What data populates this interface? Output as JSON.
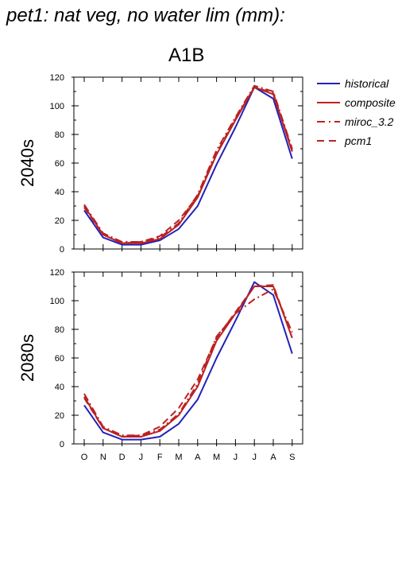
{
  "title": "pet1: nat veg, no water lim (mm):",
  "subtitle": "A1B",
  "chart_data": [
    {
      "type": "line",
      "panel_label": "2040s",
      "categories": [
        "O",
        "N",
        "D",
        "J",
        "F",
        "M",
        "A",
        "M",
        "J",
        "J",
        "A",
        "S"
      ],
      "ylim": [
        0,
        120
      ],
      "yticks": [
        0,
        20,
        40,
        60,
        80,
        100,
        120
      ],
      "series": [
        {
          "name": "historical",
          "color": "#2222bb",
          "dash": "solid",
          "values": [
            27,
            8,
            3,
            3,
            6,
            14,
            30,
            59,
            85,
            113,
            105,
            63
          ]
        },
        {
          "name": "composite",
          "color": "#bb2222",
          "dash": "solid",
          "values": [
            30,
            10,
            4,
            4,
            7,
            17,
            36,
            66,
            90,
            113,
            108,
            68
          ]
        },
        {
          "name": "miroc_3.2",
          "color": "#bb2222",
          "dash": "dashdot",
          "values": [
            31,
            11,
            5,
            5,
            8,
            18,
            38,
            69,
            92,
            114,
            110,
            70
          ]
        },
        {
          "name": "pcm1",
          "color": "#bb2222",
          "dash": "dash",
          "values": [
            29,
            10,
            4,
            5,
            9,
            20,
            37,
            67,
            91,
            113,
            109,
            69
          ]
        }
      ]
    },
    {
      "type": "line",
      "panel_label": "2080s",
      "categories": [
        "O",
        "N",
        "D",
        "J",
        "F",
        "M",
        "A",
        "M",
        "J",
        "J",
        "A",
        "S"
      ],
      "ylim": [
        0,
        120
      ],
      "yticks": [
        0,
        20,
        40,
        60,
        80,
        100,
        120
      ],
      "series": [
        {
          "name": "historical",
          "color": "#2222bb",
          "dash": "solid",
          "values": [
            27,
            8,
            3,
            3,
            5,
            14,
            31,
            60,
            86,
            113,
            104,
            63
          ]
        },
        {
          "name": "composite",
          "color": "#bb2222",
          "dash": "solid",
          "values": [
            33,
            11,
            5,
            5,
            9,
            20,
            40,
            72,
            91,
            110,
            110,
            74
          ]
        },
        {
          "name": "miroc_3.2",
          "color": "#bb2222",
          "dash": "dashdot",
          "values": [
            35,
            12,
            6,
            6,
            10,
            21,
            42,
            75,
            91,
            101,
            108,
            78
          ]
        },
        {
          "name": "pcm1",
          "color": "#bb2222",
          "dash": "dash",
          "values": [
            32,
            11,
            5,
            6,
            12,
            25,
            45,
            74,
            92,
            110,
            111,
            74
          ]
        }
      ]
    }
  ]
}
